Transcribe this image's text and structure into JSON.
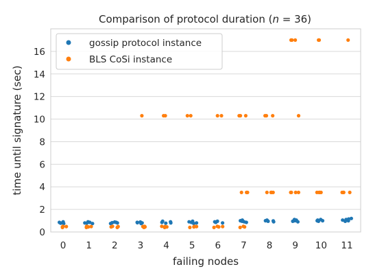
{
  "chart_data": {
    "type": "scatter",
    "title": "Comparison of protocol duration (",
    "title_n": "n",
    "title_tail": " = 36)",
    "xlabel": "failing nodes",
    "ylabel": "time until signature (sec)",
    "categories": [
      "0",
      "1",
      "2",
      "3",
      "4",
      "5",
      "6",
      "7",
      "8",
      "9",
      "10",
      "11"
    ],
    "ylim": [
      0,
      18
    ],
    "yticks": [
      "0",
      "2",
      "4",
      "6",
      "8",
      "10",
      "12",
      "14",
      "16"
    ],
    "grid": "horizontal",
    "legend_position": "top-left",
    "series": [
      {
        "name": "gossip protocol instance",
        "color": "#1f77b4",
        "points": [
          [
            0,
            0.8
          ],
          [
            0,
            0.75
          ],
          [
            0,
            0.85
          ],
          [
            0,
            0.78
          ],
          [
            0,
            0.82
          ],
          [
            0,
            0.9
          ],
          [
            1,
            0.8
          ],
          [
            1,
            0.75
          ],
          [
            1,
            0.85
          ],
          [
            1,
            0.9
          ],
          [
            1,
            0.78
          ],
          [
            2,
            0.8
          ],
          [
            2,
            0.85
          ],
          [
            2,
            0.75
          ],
          [
            2,
            0.88
          ],
          [
            2,
            0.82
          ],
          [
            3,
            0.8
          ],
          [
            3,
            0.85
          ],
          [
            3,
            0.75
          ],
          [
            3,
            0.88
          ],
          [
            3,
            0.82
          ],
          [
            4,
            0.85
          ],
          [
            4,
            0.9
          ],
          [
            4,
            0.8
          ],
          [
            4,
            0.95
          ],
          [
            4,
            0.78
          ],
          [
            5,
            0.8
          ],
          [
            5,
            0.9
          ],
          [
            5,
            0.85
          ],
          [
            5,
            0.95
          ],
          [
            5,
            0.75
          ],
          [
            6,
            0.85
          ],
          [
            6,
            0.9
          ],
          [
            6,
            0.8
          ],
          [
            6,
            0.95
          ],
          [
            6,
            0.88
          ],
          [
            7,
            0.9
          ],
          [
            7,
            0.95
          ],
          [
            7,
            1.0
          ],
          [
            7,
            0.85
          ],
          [
            7,
            1.05
          ],
          [
            8,
            0.95
          ],
          [
            8,
            1.0
          ],
          [
            8,
            0.9
          ],
          [
            8,
            1.05
          ],
          [
            8,
            0.98
          ],
          [
            9,
            1.0
          ],
          [
            9,
            0.95
          ],
          [
            9,
            1.05
          ],
          [
            9,
            1.1
          ],
          [
            9,
            0.9
          ],
          [
            10,
            1.0
          ],
          [
            10,
            1.05
          ],
          [
            10,
            0.95
          ],
          [
            10,
            1.1
          ],
          [
            10,
            1.0
          ],
          [
            11,
            1.05
          ],
          [
            11,
            1.1
          ],
          [
            11,
            1.15
          ],
          [
            11,
            1.0
          ],
          [
            11,
            1.2
          ],
          [
            11,
            0.95
          ]
        ]
      },
      {
        "name": "BLS CoSi instance",
        "color": "#ff7f0e",
        "points": [
          [
            0,
            0.45
          ],
          [
            0,
            0.5
          ],
          [
            0,
            0.4
          ],
          [
            0,
            0.48
          ],
          [
            0,
            0.42
          ],
          [
            1,
            0.45
          ],
          [
            1,
            0.5
          ],
          [
            1,
            0.4
          ],
          [
            1,
            0.48
          ],
          [
            2,
            0.45
          ],
          [
            2,
            0.5
          ],
          [
            2,
            0.4
          ],
          [
            2,
            0.48
          ],
          [
            3,
            0.45
          ],
          [
            3,
            0.5
          ],
          [
            3,
            0.4
          ],
          [
            3,
            0.48
          ],
          [
            3,
            10.3
          ],
          [
            4,
            0.45
          ],
          [
            4,
            0.5
          ],
          [
            4,
            0.4
          ],
          [
            4,
            0.48
          ],
          [
            4,
            10.3
          ],
          [
            4,
            10.3
          ],
          [
            5,
            0.45
          ],
          [
            5,
            0.5
          ],
          [
            5,
            0.4
          ],
          [
            5,
            0.48
          ],
          [
            5,
            10.3
          ],
          [
            5,
            10.3
          ],
          [
            6,
            0.45
          ],
          [
            6,
            0.5
          ],
          [
            6,
            0.4
          ],
          [
            6,
            0.48
          ],
          [
            6,
            10.3
          ],
          [
            6,
            10.3
          ],
          [
            7,
            0.45
          ],
          [
            7,
            0.5
          ],
          [
            7,
            0.4
          ],
          [
            7,
            3.5
          ],
          [
            7,
            3.5
          ],
          [
            7,
            3.5
          ],
          [
            7,
            10.3
          ],
          [
            7,
            10.3
          ],
          [
            7,
            10.3
          ],
          [
            8,
            3.5
          ],
          [
            8,
            3.5
          ],
          [
            8,
            3.5
          ],
          [
            8,
            3.5
          ],
          [
            8,
            10.3
          ],
          [
            8,
            10.3
          ],
          [
            8,
            10.3
          ],
          [
            9,
            3.5
          ],
          [
            9,
            3.5
          ],
          [
            9,
            3.5
          ],
          [
            9,
            3.5
          ],
          [
            9,
            10.3
          ],
          [
            9,
            17.0
          ],
          [
            9,
            17.0
          ],
          [
            9,
            17.0
          ],
          [
            10,
            3.5
          ],
          [
            10,
            3.5
          ],
          [
            10,
            3.5
          ],
          [
            10,
            3.5
          ],
          [
            10,
            17.0
          ],
          [
            10,
            17.0
          ],
          [
            11,
            3.5
          ],
          [
            11,
            3.5
          ],
          [
            11,
            3.5
          ],
          [
            11,
            3.5
          ],
          [
            11,
            17.0
          ]
        ]
      }
    ]
  }
}
